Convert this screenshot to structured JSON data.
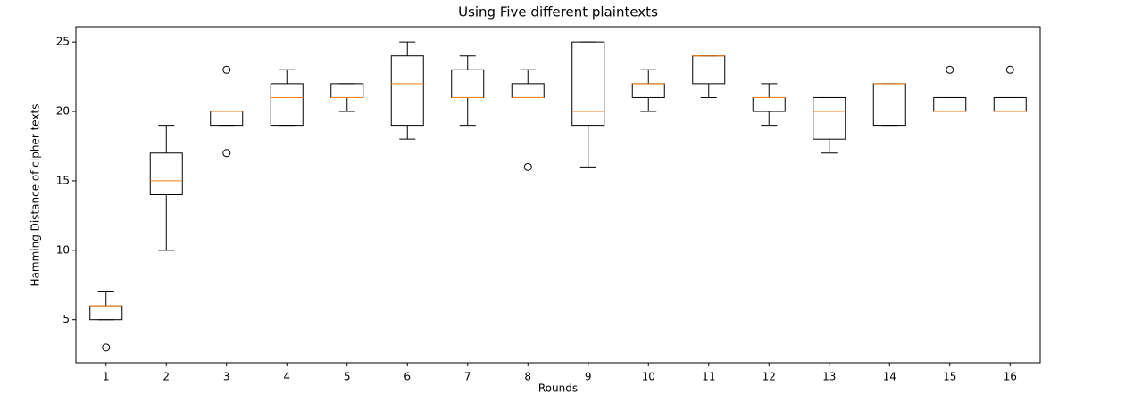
{
  "chart_data": {
    "type": "box",
    "title": "Using Five different plaintexts",
    "x_label": "Rounds",
    "y_label": "Hamming Distance of cipher texts",
    "categories": [
      "1",
      "2",
      "3",
      "4",
      "5",
      "6",
      "7",
      "8",
      "9",
      "10",
      "11",
      "12",
      "13",
      "14",
      "15",
      "16"
    ],
    "boxes": [
      {
        "whislo": 5,
        "q1": 5,
        "med": 6,
        "q3": 6,
        "whishi": 7,
        "fliers": [
          3
        ]
      },
      {
        "whislo": 10,
        "q1": 14,
        "med": 15,
        "q3": 17,
        "whishi": 19,
        "fliers": []
      },
      {
        "whislo": 19,
        "q1": 19,
        "med": 20,
        "q3": 20,
        "whishi": 20,
        "fliers": [
          23,
          17
        ]
      },
      {
        "whislo": 19,
        "q1": 19,
        "med": 21,
        "q3": 22,
        "whishi": 23,
        "fliers": []
      },
      {
        "whislo": 20,
        "q1": 21,
        "med": 21,
        "q3": 22,
        "whishi": 22,
        "fliers": []
      },
      {
        "whislo": 18,
        "q1": 19,
        "med": 22,
        "q3": 24,
        "whishi": 25,
        "fliers": []
      },
      {
        "whislo": 19,
        "q1": 21,
        "med": 21,
        "q3": 23,
        "whishi": 24,
        "fliers": []
      },
      {
        "whislo": 21,
        "q1": 21,
        "med": 21,
        "q3": 22,
        "whishi": 23,
        "fliers": [
          16
        ]
      },
      {
        "whislo": 16,
        "q1": 19,
        "med": 20,
        "q3": 25,
        "whishi": 25,
        "fliers": []
      },
      {
        "whislo": 20,
        "q1": 21,
        "med": 22,
        "q3": 22,
        "whishi": 23,
        "fliers": []
      },
      {
        "whislo": 21,
        "q1": 22,
        "med": 24,
        "q3": 24,
        "whishi": 24,
        "fliers": []
      },
      {
        "whislo": 19,
        "q1": 20,
        "med": 21,
        "q3": 21,
        "whishi": 22,
        "fliers": []
      },
      {
        "whislo": 17,
        "q1": 18,
        "med": 20,
        "q3": 21,
        "whishi": 21,
        "fliers": []
      },
      {
        "whislo": 19,
        "q1": 19,
        "med": 22,
        "q3": 22,
        "whishi": 22,
        "fliers": []
      },
      {
        "whislo": 20,
        "q1": 20,
        "med": 20,
        "q3": 21,
        "whishi": 21,
        "fliers": [
          23
        ]
      },
      {
        "whislo": 20,
        "q1": 20,
        "med": 20,
        "q3": 21,
        "whishi": 21,
        "fliers": [
          23
        ]
      }
    ],
    "box_color": "#000000",
    "median_color": "#ff7f0e",
    "ylim": [
      1.9,
      26.1
    ],
    "yticks": [
      5,
      10,
      15,
      20,
      25
    ],
    "grid": false
  }
}
